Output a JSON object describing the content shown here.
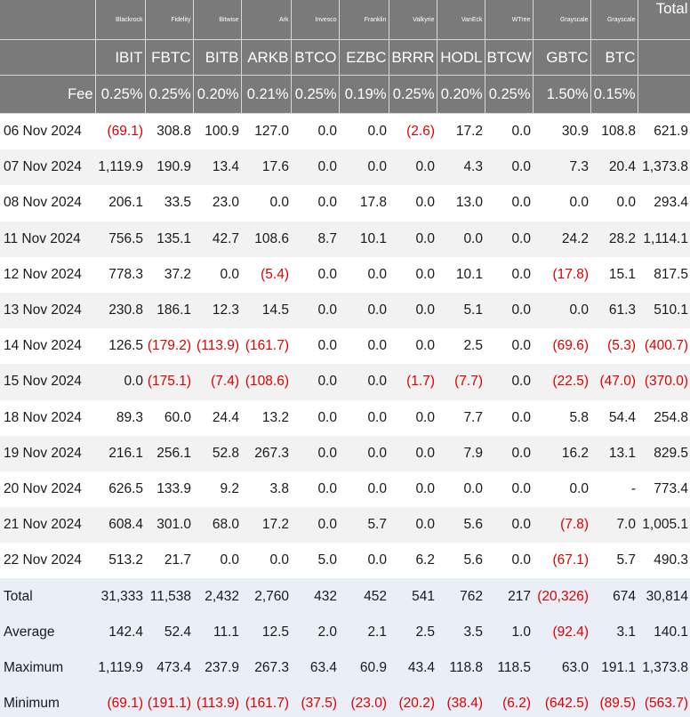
{
  "columns": [
    {
      "provider": "Blackrock",
      "ticker": "IBIT",
      "fee": "0.25%"
    },
    {
      "provider": "Fidelity",
      "ticker": "FBTC",
      "fee": "0.25%"
    },
    {
      "provider": "Bitwise",
      "ticker": "BITB",
      "fee": "0.20%"
    },
    {
      "provider": "Ark",
      "ticker": "ARKB",
      "fee": "0.21%"
    },
    {
      "provider": "Invesco",
      "ticker": "BTCO",
      "fee": "0.25%"
    },
    {
      "provider": "Franklin",
      "ticker": "EZBC",
      "fee": "0.19%"
    },
    {
      "provider": "Valkyrie",
      "ticker": "BRRR",
      "fee": "0.25%"
    },
    {
      "provider": "VanEck",
      "ticker": "HODL",
      "fee": "0.20%"
    },
    {
      "provider": "WTree",
      "ticker": "BTCW",
      "fee": "0.25%"
    },
    {
      "provider": "Grayscale",
      "ticker": "GBTC",
      "fee": "1.50%"
    },
    {
      "provider": "Grayscale",
      "ticker": "BTC",
      "fee": "0.15%"
    }
  ],
  "total_header": "Total",
  "fee_label": "Fee",
  "rows": [
    {
      "date": "06 Nov 2024",
      "values": [
        "(69.1)",
        "308.8",
        "100.9",
        "127.0",
        "0.0",
        "0.0",
        "(2.6)",
        "17.2",
        "0.0",
        "30.9",
        "108.8"
      ],
      "total": "621.9"
    },
    {
      "date": "07 Nov 2024",
      "values": [
        "1,119.9",
        "190.9",
        "13.4",
        "17.6",
        "0.0",
        "0.0",
        "0.0",
        "4.3",
        "0.0",
        "7.3",
        "20.4"
      ],
      "total": "1,373.8"
    },
    {
      "date": "08 Nov 2024",
      "values": [
        "206.1",
        "33.5",
        "23.0",
        "0.0",
        "0.0",
        "17.8",
        "0.0",
        "13.0",
        "0.0",
        "0.0",
        "0.0"
      ],
      "total": "293.4"
    },
    {
      "date": "11 Nov 2024",
      "values": [
        "756.5",
        "135.1",
        "42.7",
        "108.6",
        "8.7",
        "10.1",
        "0.0",
        "0.0",
        "0.0",
        "24.2",
        "28.2"
      ],
      "total": "1,114.1"
    },
    {
      "date": "12 Nov 2024",
      "values": [
        "778.3",
        "37.2",
        "0.0",
        "(5.4)",
        "0.0",
        "0.0",
        "0.0",
        "10.1",
        "0.0",
        "(17.8)",
        "15.1"
      ],
      "total": "817.5"
    },
    {
      "date": "13 Nov 2024",
      "values": [
        "230.8",
        "186.1",
        "12.3",
        "14.5",
        "0.0",
        "0.0",
        "0.0",
        "5.1",
        "0.0",
        "0.0",
        "61.3"
      ],
      "total": "510.1"
    },
    {
      "date": "14 Nov 2024",
      "values": [
        "126.5",
        "(179.2)",
        "(113.9)",
        "(161.7)",
        "0.0",
        "0.0",
        "0.0",
        "2.5",
        "0.0",
        "(69.6)",
        "(5.3)"
      ],
      "total": "(400.7)"
    },
    {
      "date": "15 Nov 2024",
      "values": [
        "0.0",
        "(175.1)",
        "(7.4)",
        "(108.6)",
        "0.0",
        "0.0",
        "(1.7)",
        "(7.7)",
        "0.0",
        "(22.5)",
        "(47.0)"
      ],
      "total": "(370.0)"
    },
    {
      "date": "18 Nov 2024",
      "values": [
        "89.3",
        "60.0",
        "24.4",
        "13.2",
        "0.0",
        "0.0",
        "0.0",
        "7.7",
        "0.0",
        "5.8",
        "54.4"
      ],
      "total": "254.8"
    },
    {
      "date": "19 Nov 2024",
      "values": [
        "216.1",
        "256.1",
        "52.8",
        "267.3",
        "0.0",
        "0.0",
        "0.0",
        "7.9",
        "0.0",
        "16.2",
        "13.1"
      ],
      "total": "829.5"
    },
    {
      "date": "20 Nov 2024",
      "values": [
        "626.5",
        "133.9",
        "9.2",
        "3.8",
        "0.0",
        "0.0",
        "0.0",
        "0.0",
        "0.0",
        "0.0",
        "-"
      ],
      "total": "773.4"
    },
    {
      "date": "21 Nov 2024",
      "values": [
        "608.4",
        "301.0",
        "68.0",
        "17.2",
        "0.0",
        "5.7",
        "0.0",
        "5.6",
        "0.0",
        "(7.8)",
        "7.0"
      ],
      "total": "1,005.1"
    },
    {
      "date": "22 Nov 2024",
      "values": [
        "513.2",
        "21.7",
        "0.0",
        "0.0",
        "5.0",
        "0.0",
        "6.2",
        "5.6",
        "0.0",
        "(67.1)",
        "5.7"
      ],
      "total": "490.3"
    }
  ],
  "stats": [
    {
      "label": "Total",
      "values": [
        "31,333",
        "11,538",
        "2,432",
        "2,760",
        "432",
        "452",
        "541",
        "762",
        "217",
        "(20,326)",
        "674"
      ],
      "total": "30,814"
    },
    {
      "label": "Average",
      "values": [
        "142.4",
        "52.4",
        "11.1",
        "12.5",
        "2.0",
        "2.1",
        "2.5",
        "3.5",
        "1.0",
        "(92.4)",
        "3.1"
      ],
      "total": "140.1"
    },
    {
      "label": "Maximum",
      "values": [
        "1,119.9",
        "473.4",
        "237.9",
        "267.3",
        "63.4",
        "60.9",
        "43.4",
        "118.8",
        "118.5",
        "63.0",
        "191.1"
      ],
      "total": "1,373.8"
    },
    {
      "label": "Minimum",
      "values": [
        "(69.1)",
        "(191.1)",
        "(113.9)",
        "(161.7)",
        "(37.5)",
        "(23.0)",
        "(20.2)",
        "(38.4)",
        "(6.2)",
        "(642.5)",
        "(89.5)"
      ],
      "total": "(563.7)"
    }
  ],
  "colors": {
    "header_bg": "#7a7a7a",
    "negative": "#e00000",
    "stats_bg": "#e9eef7"
  }
}
